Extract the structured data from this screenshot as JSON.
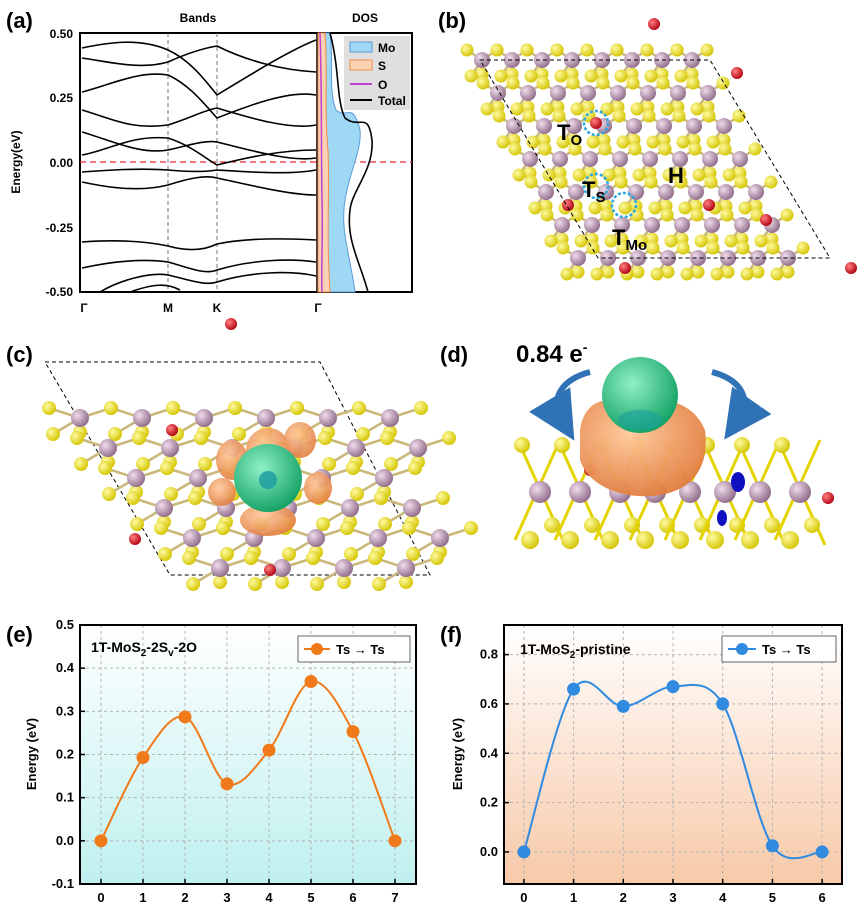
{
  "panel_labels": [
    "(a)",
    "(b)",
    "(c)",
    "(d)",
    "(e)",
    "(f)"
  ],
  "panel_a": {
    "bands_title": "Bands",
    "dos_title": "DOS",
    "ylabel": "Energy(eV)",
    "yticks": [
      "0.50",
      "0.25",
      "0.00",
      "-0.25",
      "-0.50"
    ],
    "kpoints": [
      "Γ",
      "M",
      "K",
      "Γ"
    ],
    "legend": [
      "Mo",
      "S",
      "O",
      "Total"
    ],
    "colors": {
      "mo": "#5b9bd5",
      "mo_fill": "#9fd8f5",
      "s": "#f28c4a",
      "s_fill": "#fbd3b4",
      "o": "#c040d0",
      "total": "#000000",
      "fermi": "#e8262a"
    }
  },
  "panel_b": {
    "site_labels": {
      "t_o": "T",
      "t_o_sub": "O",
      "t_s": "T",
      "t_s_sub": "S",
      "h": "H",
      "t_mo": "T",
      "t_mo_sub": "Mo"
    },
    "colors": {
      "mo_atom": "#b08aa8",
      "s_atom": "#f4e61a",
      "o_atom": "#e0191f",
      "marker": "#2aa8e0"
    }
  },
  "panel_d": {
    "charge_label": "0.84 e",
    "charge_sup": "-",
    "colors": {
      "accumulation": "#27c27a",
      "depletion": "#f2955a",
      "arrow": "#2f72b5"
    }
  },
  "chart_data": [
    {
      "type": "line",
      "panel": "e",
      "title_parts": [
        "1T-MoS",
        "2",
        "-2S",
        "v",
        "-2O"
      ],
      "legend": "Ts → Ts",
      "xlabel": "",
      "ylabel": "Energy (eV)",
      "x": [
        0,
        1,
        2,
        3,
        4,
        5,
        6,
        7
      ],
      "y": [
        0.0,
        0.193,
        0.287,
        0.132,
        0.21,
        0.369,
        0.253,
        0.0
      ],
      "xlim": [
        -0.5,
        7.5
      ],
      "ylim": [
        -0.1,
        0.5
      ],
      "yticks": [
        "-0.1",
        "0.0",
        "0.1",
        "0.2",
        "0.3",
        "0.4",
        "0.5"
      ],
      "xticks": [
        "0",
        "1",
        "2",
        "3",
        "4",
        "5",
        "6",
        "7"
      ],
      "color": "#f07a1a",
      "grid": true,
      "legend_position": "top-right"
    },
    {
      "type": "line",
      "panel": "f",
      "title_parts": [
        "1T-MoS",
        "2",
        "-pristine"
      ],
      "legend": "Ts → Ts",
      "xlabel": "",
      "ylabel": "Energy (eV)",
      "x": [
        0,
        1,
        2,
        3,
        4,
        5,
        6
      ],
      "y": [
        0.0,
        0.66,
        0.59,
        0.67,
        0.6,
        0.025,
        0.0
      ],
      "xlim": [
        -0.4,
        6.4
      ],
      "ylim": [
        -0.13,
        0.92
      ],
      "yticks": [
        "0.0",
        "0.2",
        "0.4",
        "0.6",
        "0.8"
      ],
      "xticks": [
        "0",
        "1",
        "2",
        "3",
        "4",
        "5",
        "6"
      ],
      "color": "#2f8ae0",
      "grid": true,
      "legend_position": "top-right"
    }
  ]
}
